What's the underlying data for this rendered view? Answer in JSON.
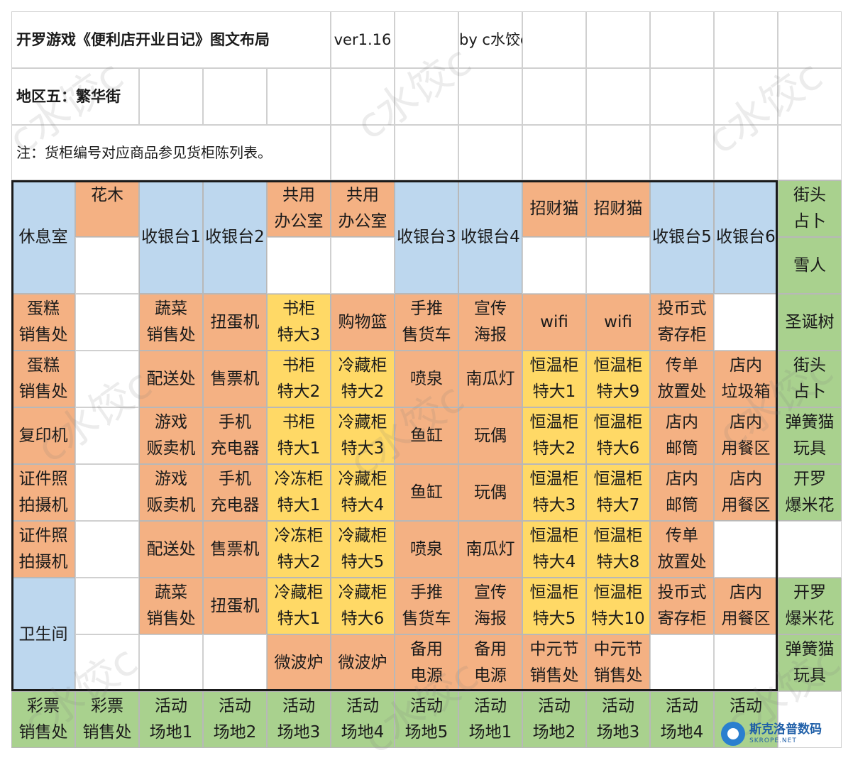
{
  "header": {
    "title": "开罗游戏《便利店开业日记》图文布局",
    "version": "ver1.16",
    "author": "by   c水饺c",
    "region": "地区五：繁华街",
    "note": "注：货柜编号对应商品参见货柜陈列表。"
  },
  "watermark": {
    "text": "c水饺c"
  },
  "badge": {
    "name": "斯克洛普数码",
    "domain": "SKROPE.NET"
  },
  "colors": {
    "blue": "#bdd7ee",
    "orange": "#f4b183",
    "yellow": "#ffd966",
    "green": "#a9d18e",
    "blank": "#ffffff"
  },
  "map": {
    "rows": [
      [
        {
          "text": "休息室",
          "type": "blue",
          "rowspan": 2
        },
        {
          "text": "花木",
          "type": "orange",
          "top": true
        },
        {
          "text": "收银台1",
          "type": "blue",
          "rowspan": 2
        },
        {
          "text": "收银台2",
          "type": "blue",
          "rowspan": 2
        },
        {
          "text": "共用\n办公室",
          "type": "orange"
        },
        {
          "text": "共用\n办公室",
          "type": "orange"
        },
        {
          "text": "收银台3",
          "type": "blue",
          "rowspan": 2
        },
        {
          "text": "收银台4",
          "type": "blue",
          "rowspan": 2
        },
        {
          "text": "招财猫",
          "type": "orange"
        },
        {
          "text": "招财猫",
          "type": "orange"
        },
        {
          "text": "收银台5",
          "type": "blue",
          "rowspan": 2
        },
        {
          "text": "收银台6",
          "type": "blue",
          "rowspan": 2
        },
        {
          "text": "街头\n占卜",
          "type": "green"
        }
      ],
      [
        null,
        {
          "text": "",
          "type": "blank"
        },
        null,
        null,
        {
          "text": "",
          "type": "blank"
        },
        {
          "text": "",
          "type": "blank"
        },
        null,
        null,
        {
          "text": "",
          "type": "blank"
        },
        {
          "text": "",
          "type": "blank"
        },
        null,
        null,
        {
          "text": "雪人",
          "type": "green"
        }
      ],
      [
        {
          "text": "蛋糕\n销售处",
          "type": "orange"
        },
        {
          "text": "",
          "type": "blank"
        },
        {
          "text": "蔬菜\n销售处",
          "type": "orange"
        },
        {
          "text": "扭蛋机",
          "type": "orange"
        },
        {
          "text": "书柜\n特大3",
          "type": "yellow"
        },
        {
          "text": "购物篮",
          "type": "orange"
        },
        {
          "text": "手推\n售货车",
          "type": "orange"
        },
        {
          "text": "宣传\n海报",
          "type": "orange"
        },
        {
          "text": "wifi",
          "type": "orange"
        },
        {
          "text": "wifi",
          "type": "orange"
        },
        {
          "text": "投币式\n寄存柜",
          "type": "orange"
        },
        {
          "text": "",
          "type": "blank"
        },
        {
          "text": "圣诞树",
          "type": "green"
        }
      ],
      [
        {
          "text": "蛋糕\n销售处",
          "type": "orange"
        },
        {
          "text": "",
          "type": "blank"
        },
        {
          "text": "配送处",
          "type": "orange"
        },
        {
          "text": "售票机",
          "type": "orange"
        },
        {
          "text": "书柜\n特大2",
          "type": "yellow"
        },
        {
          "text": "冷藏柜\n特大2",
          "type": "yellow"
        },
        {
          "text": "喷泉",
          "type": "orange"
        },
        {
          "text": "南瓜灯",
          "type": "orange"
        },
        {
          "text": "恒温柜\n特大1",
          "type": "yellow"
        },
        {
          "text": "恒温柜\n特大9",
          "type": "yellow"
        },
        {
          "text": "传单\n放置处",
          "type": "orange"
        },
        {
          "text": "店内\n垃圾箱",
          "type": "orange"
        },
        {
          "text": "街头\n占卜",
          "type": "green"
        }
      ],
      [
        {
          "text": "复印机",
          "type": "orange"
        },
        {
          "text": "",
          "type": "blank"
        },
        {
          "text": "游戏\n贩卖机",
          "type": "orange"
        },
        {
          "text": "手机\n充电器",
          "type": "orange"
        },
        {
          "text": "书柜\n特大1",
          "type": "yellow"
        },
        {
          "text": "冷藏柜\n特大3",
          "type": "yellow"
        },
        {
          "text": "鱼缸",
          "type": "orange"
        },
        {
          "text": "玩偶",
          "type": "orange"
        },
        {
          "text": "恒温柜\n特大2",
          "type": "yellow"
        },
        {
          "text": "恒温柜\n特大6",
          "type": "yellow"
        },
        {
          "text": "店内\n邮筒",
          "type": "orange"
        },
        {
          "text": "店内\n用餐区",
          "type": "orange"
        },
        {
          "text": "弹簧猫\n玩具",
          "type": "green"
        }
      ],
      [
        {
          "text": "证件照\n拍摄机",
          "type": "orange"
        },
        {
          "text": "",
          "type": "blank"
        },
        {
          "text": "游戏\n贩卖机",
          "type": "orange"
        },
        {
          "text": "手机\n充电器",
          "type": "orange"
        },
        {
          "text": "冷冻柜\n特大1",
          "type": "yellow"
        },
        {
          "text": "冷藏柜\n特大4",
          "type": "yellow"
        },
        {
          "text": "鱼缸",
          "type": "orange"
        },
        {
          "text": "玩偶",
          "type": "orange"
        },
        {
          "text": "恒温柜\n特大3",
          "type": "yellow"
        },
        {
          "text": "恒温柜\n特大7",
          "type": "yellow"
        },
        {
          "text": "店内\n邮筒",
          "type": "orange"
        },
        {
          "text": "店内\n用餐区",
          "type": "orange"
        },
        {
          "text": "开罗\n爆米花",
          "type": "green"
        }
      ],
      [
        {
          "text": "证件照\n拍摄机",
          "type": "orange"
        },
        {
          "text": "",
          "type": "blank"
        },
        {
          "text": "配送处",
          "type": "orange"
        },
        {
          "text": "售票机",
          "type": "orange"
        },
        {
          "text": "冷冻柜\n特大2",
          "type": "yellow"
        },
        {
          "text": "冷藏柜\n特大5",
          "type": "yellow"
        },
        {
          "text": "喷泉",
          "type": "orange"
        },
        {
          "text": "南瓜灯",
          "type": "orange"
        },
        {
          "text": "恒温柜\n特大4",
          "type": "yellow"
        },
        {
          "text": "恒温柜\n特大8",
          "type": "yellow"
        },
        {
          "text": "传单\n放置处",
          "type": "orange"
        },
        {
          "text": "",
          "type": "blank"
        },
        {
          "text": "",
          "type": "blank"
        }
      ],
      [
        {
          "text": "卫生间",
          "type": "blue",
          "rowspan": 2
        },
        {
          "text": "",
          "type": "blank"
        },
        {
          "text": "蔬菜\n销售处",
          "type": "orange"
        },
        {
          "text": "扭蛋机",
          "type": "orange"
        },
        {
          "text": "冷藏柜\n特大1",
          "type": "yellow"
        },
        {
          "text": "冷藏柜\n特大6",
          "type": "yellow"
        },
        {
          "text": "手推\n售货车",
          "type": "orange"
        },
        {
          "text": "宣传\n海报",
          "type": "orange"
        },
        {
          "text": "恒温柜\n特大5",
          "type": "yellow"
        },
        {
          "text": "恒温柜\n特大10",
          "type": "yellow"
        },
        {
          "text": "投币式\n寄存柜",
          "type": "orange"
        },
        {
          "text": "店内\n用餐区",
          "type": "orange"
        },
        {
          "text": "开罗\n爆米花",
          "type": "green"
        }
      ],
      [
        null,
        {
          "text": "",
          "type": "blank"
        },
        {
          "text": "",
          "type": "blank"
        },
        {
          "text": "",
          "type": "blank"
        },
        {
          "text": "微波炉",
          "type": "orange"
        },
        {
          "text": "微波炉",
          "type": "orange"
        },
        {
          "text": "备用\n电源",
          "type": "orange"
        },
        {
          "text": "备用\n电源",
          "type": "orange"
        },
        {
          "text": "中元节\n销售处",
          "type": "orange"
        },
        {
          "text": "中元节\n销售处",
          "type": "orange"
        },
        {
          "text": "",
          "type": "blank"
        },
        {
          "text": "",
          "type": "blank"
        },
        {
          "text": "弹簧猫\n玩具",
          "type": "green"
        }
      ],
      [
        {
          "text": "彩票\n销售处",
          "type": "green"
        },
        {
          "text": "彩票\n销售处",
          "type": "green"
        },
        {
          "text": "活动\n场地1",
          "type": "green"
        },
        {
          "text": "活动\n场地2",
          "type": "green"
        },
        {
          "text": "活动\n场地3",
          "type": "green"
        },
        {
          "text": "活动\n场地4",
          "type": "green"
        },
        {
          "text": "活动\n场地5",
          "type": "green"
        },
        {
          "text": "活动\n场地1",
          "type": "green"
        },
        {
          "text": "活动\n场地2",
          "type": "green"
        },
        {
          "text": "活动\n场地3",
          "type": "green"
        },
        {
          "text": "活动\n场地4",
          "type": "green"
        },
        {
          "text": "活动",
          "type": "green",
          "top": true
        },
        {
          "text": "",
          "type": "blank"
        }
      ]
    ]
  }
}
